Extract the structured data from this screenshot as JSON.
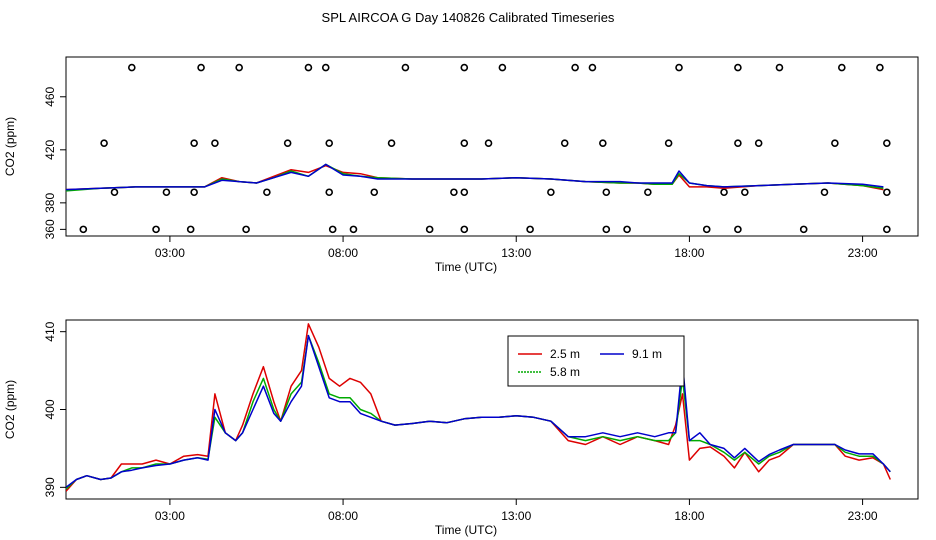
{
  "figure": {
    "title": "SPL AIRCOA G  Day 140826  Calibrated Timeseries"
  },
  "chart_data": [
    {
      "type": "line",
      "id": "top",
      "xlabel": "Time (UTC)",
      "ylabel": "CO2 (ppm)",
      "xlim": [
        0,
        24.6
      ],
      "ylim": [
        355,
        490
      ],
      "xticks": [
        3,
        8,
        13,
        18,
        23
      ],
      "xticklabels": [
        "03:00",
        "08:00",
        "13:00",
        "18:00",
        "23:00"
      ],
      "yticks": [
        360,
        380,
        420,
        460
      ],
      "yticklabels": [
        "360",
        "380",
        "420",
        "460"
      ],
      "colors": {
        "s25": "#dd0000",
        "s58": "#00aa00",
        "s91": "#0000cc"
      },
      "series": [
        {
          "name": "2.5 m",
          "color": "#dd0000",
          "x": [
            0,
            1,
            2,
            3,
            4,
            4.5,
            5,
            5.5,
            6,
            6.5,
            7,
            7.5,
            8,
            8.5,
            9,
            10,
            11,
            12,
            13,
            14,
            15,
            16,
            16.5,
            17,
            17.5,
            17.7,
            18,
            18.5,
            19,
            20,
            21,
            22,
            23,
            23.6
          ],
          "y": [
            390,
            391,
            392,
            392,
            392,
            399,
            396,
            395,
            400,
            405,
            403,
            408,
            403,
            402,
            399,
            398,
            398,
            398,
            399,
            398,
            396,
            395,
            395,
            394,
            394,
            401,
            392,
            392,
            391,
            393,
            394,
            395,
            393,
            390
          ]
        },
        {
          "name": "5.8 m",
          "color": "#00aa00",
          "x": [
            0,
            1,
            2,
            3,
            4,
            4.5,
            5,
            5.5,
            6,
            6.5,
            7,
            7.5,
            8,
            8.5,
            9,
            10,
            11,
            12,
            13,
            14,
            15,
            16,
            16.5,
            17,
            17.5,
            17.7,
            18,
            18.5,
            19,
            20,
            21,
            22,
            23,
            23.6
          ],
          "y": [
            389,
            391,
            392,
            392,
            392,
            398,
            396,
            395,
            399,
            404,
            400,
            409,
            402,
            400,
            399,
            398,
            398,
            398,
            399,
            398,
            396,
            395,
            395,
            394,
            394,
            402,
            395,
            393,
            392,
            393,
            394,
            395,
            393,
            391
          ]
        },
        {
          "name": "9.1 m",
          "color": "#0000cc",
          "x": [
            0,
            1,
            2,
            3,
            4,
            4.5,
            5,
            5.5,
            6,
            6.5,
            7,
            7.5,
            8,
            8.5,
            9,
            10,
            11,
            12,
            13,
            14,
            15,
            16,
            16.5,
            17,
            17.5,
            17.7,
            18,
            18.5,
            19,
            20,
            21,
            22,
            23,
            23.6
          ],
          "y": [
            390,
            391,
            392,
            392,
            392,
            397,
            396,
            395,
            399,
            403,
            400,
            409,
            401,
            400,
            398,
            398,
            398,
            398,
            399,
            398,
            396,
            396,
            395,
            395,
            395,
            404,
            395,
            393,
            392,
            393,
            394,
            395,
            394,
            392
          ]
        }
      ],
      "flags": {
        "x": [
          1.9,
          3.9,
          5.0,
          7.0,
          7.5,
          9.8,
          11.5,
          12.6,
          14.7,
          15.2,
          17.7,
          19.4,
          20.6,
          22.4,
          23.5,
          1.1,
          3.7,
          4.3,
          6.4,
          7.6,
          9.4,
          11.5,
          12.2,
          14.4,
          15.5,
          17.4,
          19.4,
          20.0,
          22.2,
          23.7,
          0.5,
          2.6,
          3.6,
          5.2,
          7.7,
          8.3,
          10.5,
          11.5,
          13.4,
          15.6,
          16.2,
          18.5,
          19.4,
          21.3,
          23.7,
          1.4,
          2.9,
          3.7,
          5.8,
          7.6,
          8.9,
          11.2,
          11.5,
          14.0,
          15.6,
          16.8,
          19.0,
          19.6,
          21.9,
          23.7
        ],
        "y": [
          482,
          482,
          482,
          482,
          482,
          482,
          482,
          482,
          482,
          482,
          482,
          482,
          482,
          482,
          482,
          425,
          425,
          425,
          425,
          425,
          425,
          425,
          425,
          425,
          425,
          425,
          425,
          425,
          425,
          425,
          360,
          360,
          360,
          360,
          360,
          360,
          360,
          360,
          360,
          360,
          360,
          360,
          360,
          360,
          360,
          388,
          388,
          388,
          388,
          388,
          388,
          388,
          388,
          388,
          388,
          388,
          388,
          388,
          388,
          388
        ]
      }
    },
    {
      "type": "line",
      "id": "bottom",
      "xlabel": "Time (UTC)",
      "ylabel": "CO2 (ppm)",
      "xlim": [
        0,
        24.6
      ],
      "ylim": [
        388.5,
        411.5
      ],
      "xticks": [
        3,
        8,
        13,
        18,
        23
      ],
      "xticklabels": [
        "03:00",
        "08:00",
        "13:00",
        "18:00",
        "23:00"
      ],
      "yticks": [
        390,
        400,
        410
      ],
      "yticklabels": [
        "390",
        "400",
        "410"
      ],
      "legend": {
        "placement": "top-center",
        "entries": [
          "2.5 m",
          "5.8 m",
          "9.1 m"
        ]
      },
      "series": [
        {
          "name": "2.5 m",
          "color": "#dd0000",
          "x": [
            0,
            0.3,
            0.6,
            1,
            1.3,
            1.6,
            1.9,
            2.2,
            2.6,
            3,
            3.4,
            3.8,
            4.1,
            4.3,
            4.6,
            4.9,
            5.1,
            5.4,
            5.7,
            6,
            6.2,
            6.5,
            6.8,
            7,
            7.3,
            7.6,
            7.9,
            8.2,
            8.5,
            8.8,
            9.1,
            9.5,
            10,
            10.5,
            11,
            11.5,
            12,
            12.5,
            13,
            13.5,
            14,
            14.5,
            15,
            15.5,
            16,
            16.5,
            17,
            17.4,
            17.6,
            17.8,
            18,
            18.3,
            18.6,
            19,
            19.3,
            19.6,
            20,
            20.3,
            20.6,
            21,
            21.4,
            21.8,
            22.2,
            22.5,
            22.9,
            23.3,
            23.6,
            23.8
          ],
          "y": [
            389.5,
            391,
            391.5,
            391,
            391.2,
            393,
            393,
            393,
            393.5,
            393,
            394,
            394.2,
            394,
            402,
            397,
            396,
            398,
            402,
            405.5,
            401,
            398.5,
            403,
            405,
            411,
            408,
            404,
            403,
            404,
            403.5,
            402,
            398.5,
            398,
            398.2,
            398.5,
            398.3,
            398.8,
            399,
            399,
            399.2,
            399,
            398.5,
            396,
            395.5,
            396.5,
            395.5,
            396.5,
            396,
            395.5,
            398,
            402,
            393.5,
            395,
            395.2,
            394,
            392.5,
            394.5,
            392,
            393.5,
            394,
            395.5,
            395.5,
            395.5,
            395.5,
            394,
            393.5,
            393.8,
            393,
            391
          ]
        },
        {
          "name": "5.8 m",
          "color": "#00aa00",
          "x": [
            0,
            0.3,
            0.6,
            1,
            1.3,
            1.6,
            1.9,
            2.2,
            2.6,
            3,
            3.4,
            3.8,
            4.1,
            4.3,
            4.6,
            4.9,
            5.1,
            5.4,
            5.7,
            6,
            6.2,
            6.5,
            6.8,
            7,
            7.3,
            7.6,
            7.9,
            8.2,
            8.5,
            8.8,
            9.1,
            9.5,
            10,
            10.5,
            11,
            11.5,
            12,
            12.5,
            13,
            13.5,
            14,
            14.5,
            15,
            15.5,
            16,
            16.5,
            17,
            17.4,
            17.6,
            17.8,
            18,
            18.3,
            18.6,
            19,
            19.3,
            19.6,
            20,
            20.3,
            20.6,
            21,
            21.4,
            21.8,
            22.2,
            22.5,
            22.9,
            23.3,
            23.6,
            23.8
          ],
          "y": [
            389.8,
            391,
            391.5,
            391,
            391.2,
            392,
            392.5,
            392.5,
            393,
            393,
            393.5,
            393.8,
            393.6,
            399,
            397,
            396,
            397,
            401,
            404,
            400,
            398.5,
            402,
            403.5,
            409.5,
            406,
            402,
            401.5,
            401.5,
            400,
            399.5,
            398.5,
            398,
            398.2,
            398.5,
            398.3,
            398.8,
            399,
            399,
            399.2,
            399,
            398.5,
            396.5,
            396,
            396.5,
            396,
            396.5,
            396,
            396,
            397,
            404,
            396,
            396,
            395.5,
            394.5,
            393.5,
            394.5,
            393,
            394,
            394.5,
            395.5,
            395.5,
            395.5,
            395.5,
            394.5,
            394,
            394,
            393,
            392
          ]
        },
        {
          "name": "9.1 m",
          "color": "#0000cc",
          "x": [
            0,
            0.3,
            0.6,
            1,
            1.3,
            1.6,
            1.9,
            2.2,
            2.6,
            3,
            3.4,
            3.8,
            4.1,
            4.3,
            4.6,
            4.9,
            5.1,
            5.4,
            5.7,
            6,
            6.2,
            6.5,
            6.8,
            7,
            7.3,
            7.6,
            7.9,
            8.2,
            8.5,
            8.8,
            9.1,
            9.5,
            10,
            10.5,
            11,
            11.5,
            12,
            12.5,
            13,
            13.5,
            14,
            14.5,
            15,
            15.5,
            16,
            16.5,
            17,
            17.4,
            17.6,
            17.8,
            18,
            18.3,
            18.6,
            19,
            19.3,
            19.6,
            20,
            20.3,
            20.6,
            21,
            21.4,
            21.8,
            22.2,
            22.5,
            22.9,
            23.3,
            23.6,
            23.8
          ],
          "y": [
            390,
            391,
            391.5,
            391,
            391.2,
            392,
            392.2,
            392.5,
            392.8,
            393,
            393.5,
            393.8,
            393.5,
            400,
            397,
            396,
            397,
            400,
            403,
            399.5,
            398.5,
            401,
            403,
            409.5,
            405.5,
            401.5,
            401,
            401,
            399.5,
            399,
            398.5,
            398,
            398.2,
            398.5,
            398.3,
            398.8,
            399,
            399,
            399.2,
            399,
            398.5,
            396.5,
            396.5,
            397,
            396.5,
            397,
            396.5,
            397,
            397,
            406,
            396,
            397,
            395.5,
            395,
            393.8,
            395,
            393.3,
            394.2,
            394.8,
            395.5,
            395.5,
            395.5,
            395.5,
            394.8,
            394.3,
            394.3,
            393,
            392
          ]
        }
      ]
    }
  ]
}
